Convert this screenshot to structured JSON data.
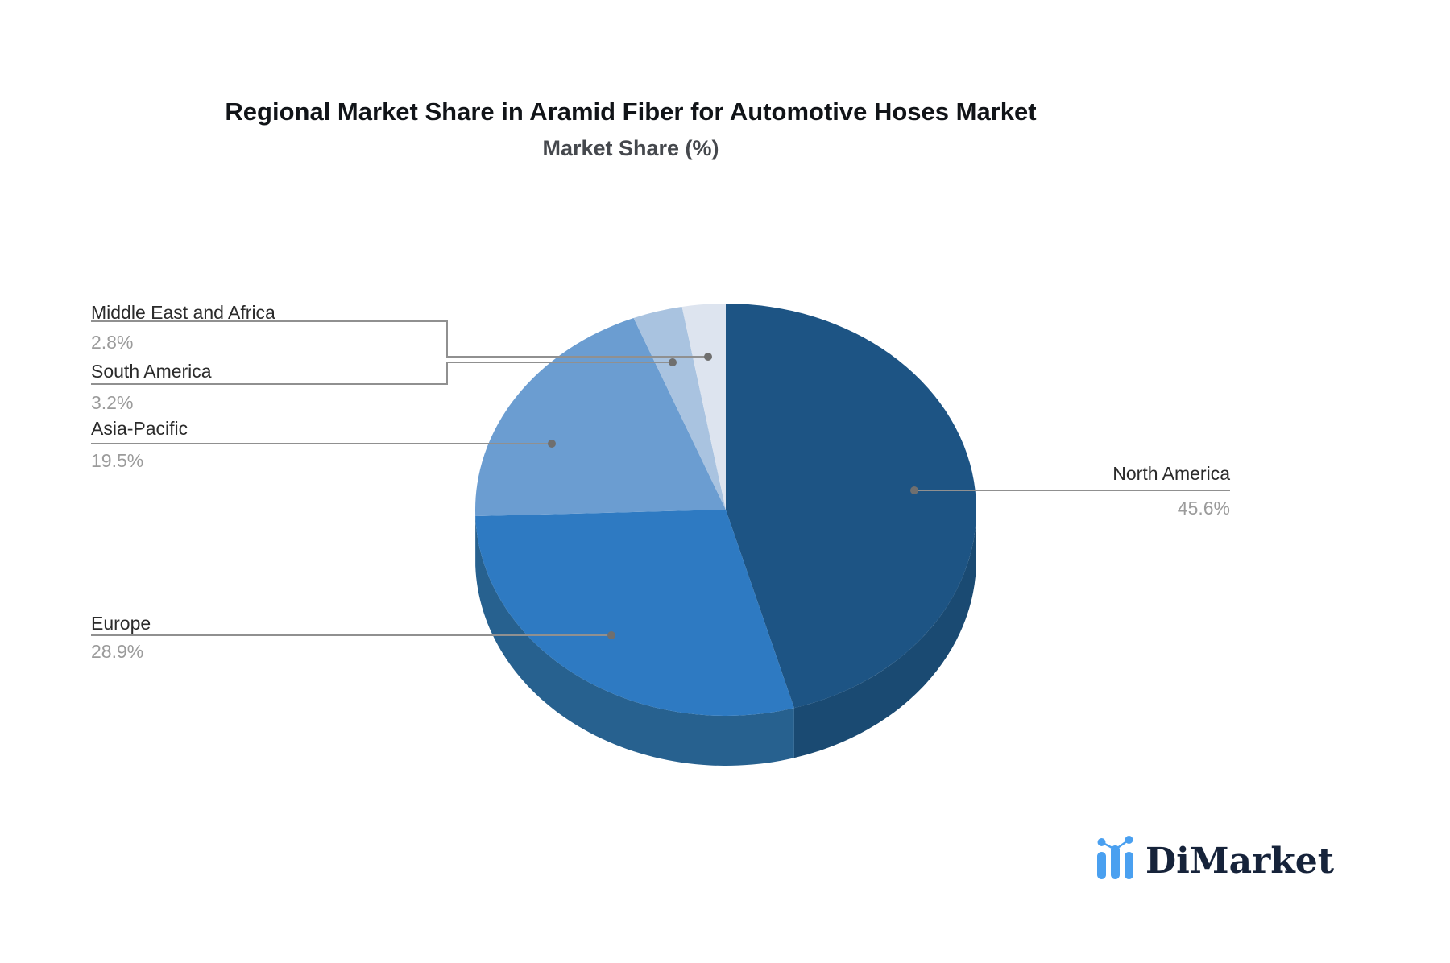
{
  "title": "Regional Market Share in Aramid Fiber for Automotive Hoses Market",
  "subtitle": "Market Share (%)",
  "logo": {
    "text": "DiMarket"
  },
  "colors": {
    "background": "#ffffff",
    "title_text": "#111418",
    "subtitle_text": "#45484d",
    "label_text": "#2b2b2b",
    "value_text": "#9b9b9b",
    "leader_line": "#909090",
    "leader_dot": "#6f6f6f",
    "logo_text": "#16233a",
    "logo_icon": "#4aa0f0"
  },
  "chart_data": {
    "type": "pie",
    "title": "Regional Market Share in Aramid Fiber for Automotive Hoses Market",
    "subtitle": "Market Share (%)",
    "unit": "%",
    "style": "3d",
    "start_angle_deg": 0,
    "direction": "clockwise",
    "legend_position": "none",
    "labels": "outside-with-leader-lines",
    "slices": [
      {
        "label": "North America",
        "value": 45.6,
        "color": "#1d5484",
        "side_color": "#1a4a72"
      },
      {
        "label": "Europe",
        "value": 28.9,
        "color": "#2e7ac2",
        "side_color": "#27618f"
      },
      {
        "label": "Asia-Pacific",
        "value": 19.5,
        "color": "#6b9dd1",
        "side_color": "#567fa9"
      },
      {
        "label": "South America",
        "value": 3.2,
        "color": "#a9c3e0",
        "side_color": "#8ba3bd"
      },
      {
        "label": "Middle East and Africa",
        "value": 2.8,
        "color": "#dde4ef",
        "side_color": "#b8c2d1"
      }
    ]
  }
}
